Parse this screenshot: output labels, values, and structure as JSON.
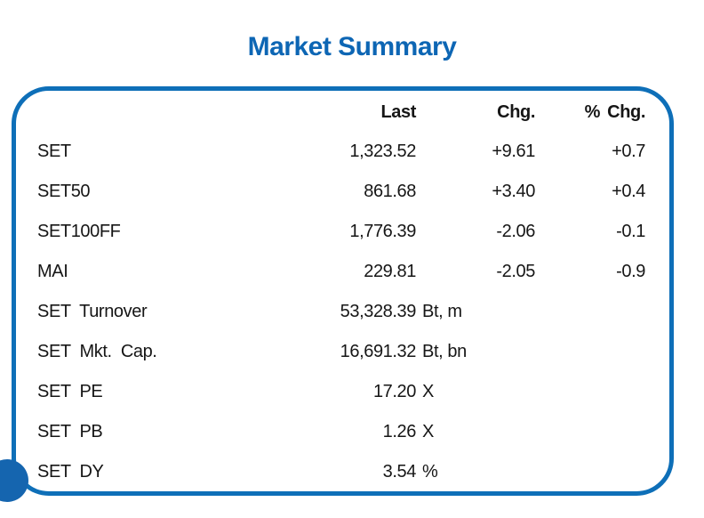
{
  "title": "Market Summary",
  "colors": {
    "accent": "#0e6fb8",
    "title_blue": "#0d66b4",
    "text": "#161616",
    "circle": "#1565af"
  },
  "table": {
    "headers": {
      "last": "Last",
      "chg": "Chg.",
      "pct": "% Chg."
    },
    "rows": [
      {
        "label": "SET",
        "last": "1,323.52",
        "unit": "",
        "chg": "+9.61",
        "pct": "+0.7"
      },
      {
        "label": "SET50",
        "last": "861.68",
        "unit": "",
        "chg": "+3.40",
        "pct": "+0.4"
      },
      {
        "label": "SET100FF",
        "last": "1,776.39",
        "unit": "",
        "chg": "-2.06",
        "pct": "-0.1"
      },
      {
        "label": "MAI",
        "last": "229.81",
        "unit": "",
        "chg": "-2.05",
        "pct": "-0.9"
      },
      {
        "label": "SET Turnover",
        "last": "53,328.39",
        "unit": "Bt, m",
        "chg": "",
        "pct": ""
      },
      {
        "label": "SET Mkt. Cap.",
        "last": "16,691.32",
        "unit": "Bt, bn",
        "chg": "",
        "pct": ""
      },
      {
        "label": "SET PE",
        "last": "17.20",
        "unit": "X",
        "chg": "",
        "pct": ""
      },
      {
        "label": "SET PB",
        "last": "1.26",
        "unit": "X",
        "chg": "",
        "pct": ""
      },
      {
        "label": "SET DY",
        "last": "3.54",
        "unit": "%",
        "chg": "",
        "pct": ""
      }
    ]
  }
}
